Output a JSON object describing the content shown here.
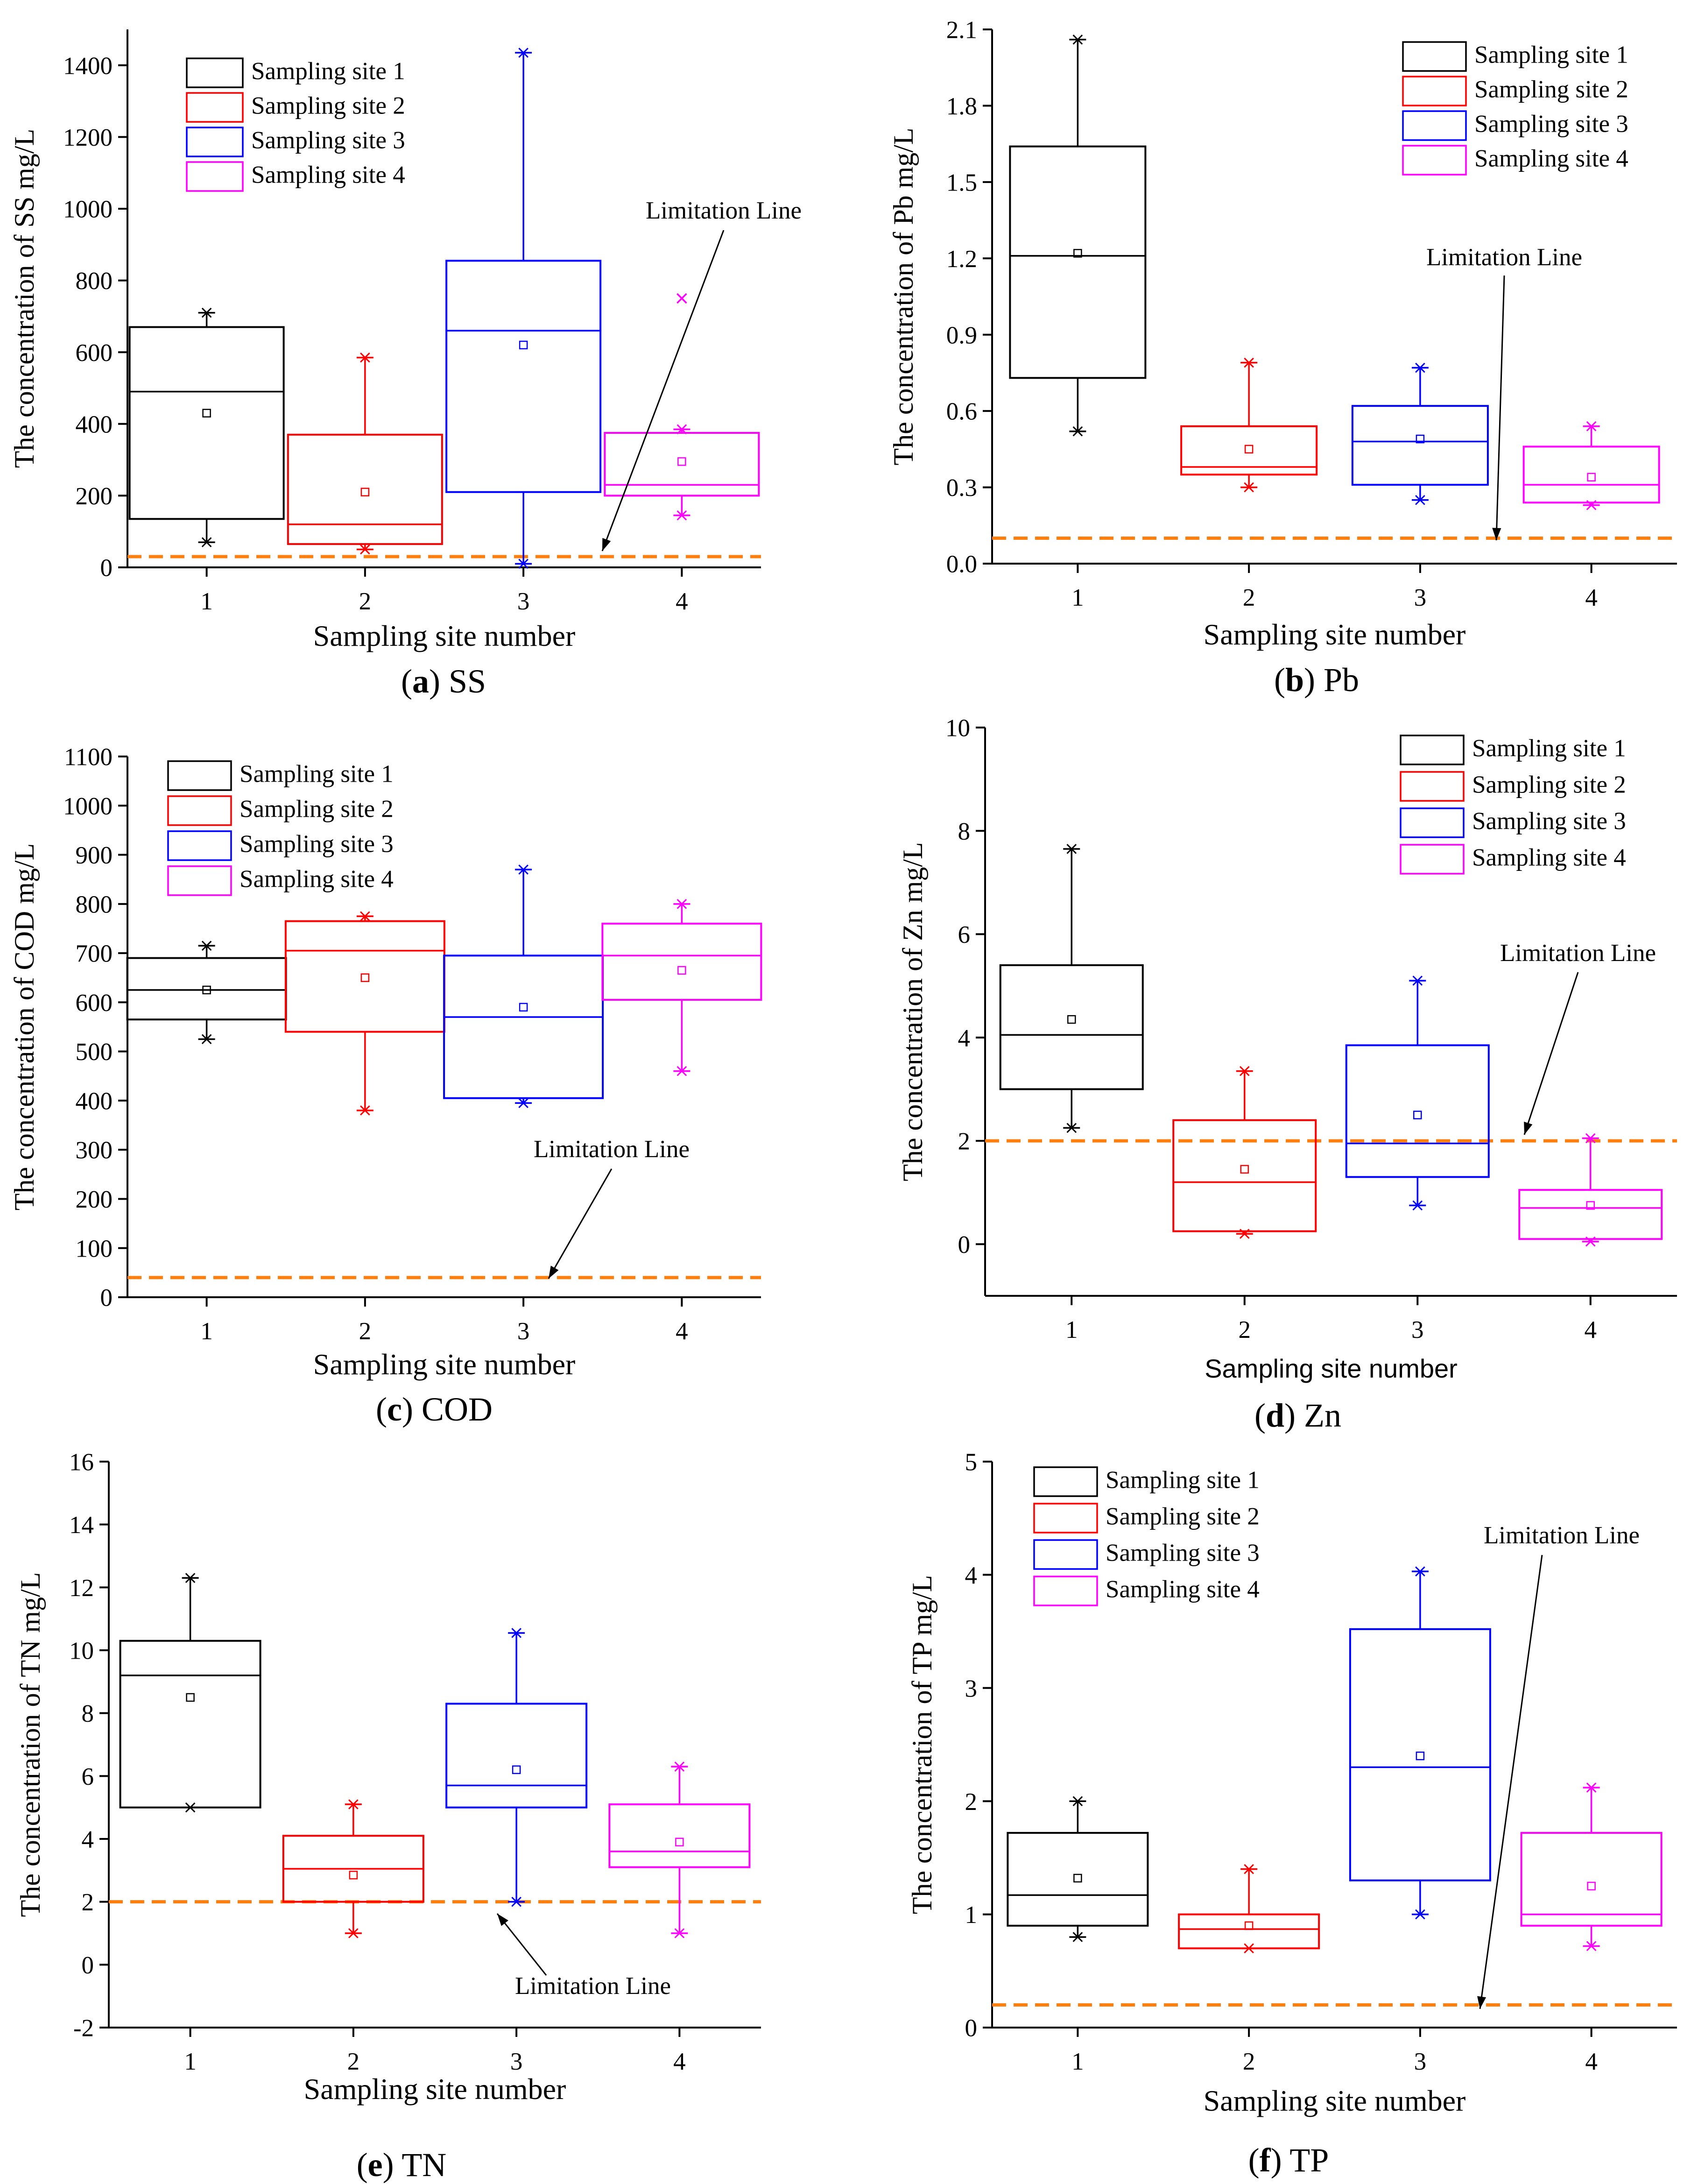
{
  "chart_data": [
    {
      "id": "a",
      "type": "box",
      "caption_letter": "a",
      "caption_text": " SS",
      "ylabel": "The concentration of SS mg/L",
      "xlabel": "Sampling site number",
      "ylim": [
        0,
        1500
      ],
      "yticks": [
        0,
        200,
        400,
        600,
        800,
        1000,
        1200,
        1400
      ],
      "categories": [
        "1",
        "2",
        "3",
        "4"
      ],
      "limit_value": 30,
      "limit_label": "Limitation Line",
      "legend": [
        "Sampling site 1",
        "Sampling site 2",
        "Sampling site 3",
        "Sampling site 4"
      ],
      "boxes": [
        {
          "q1": 135,
          "median": 490,
          "q3": 670,
          "mean": 430,
          "wlo": 70,
          "whi": 710,
          "outliers": []
        },
        {
          "q1": 65,
          "median": 120,
          "q3": 370,
          "mean": 210,
          "wlo": 50,
          "whi": 585,
          "outliers": []
        },
        {
          "q1": 210,
          "median": 660,
          "q3": 855,
          "mean": 620,
          "wlo": 10,
          "whi": 1435,
          "outliers": []
        },
        {
          "q1": 200,
          "median": 230,
          "q3": 375,
          "mean": 295,
          "wlo": 145,
          "whi": 385,
          "outliers": [
            750
          ]
        }
      ]
    },
    {
      "id": "b",
      "type": "box",
      "caption_letter": "b",
      "caption_text": " Pb",
      "ylabel": "The concentration of Pb  mg/L",
      "xlabel": "Sampling site number",
      "ylim": [
        0,
        2.1
      ],
      "yticks": [
        0.0,
        0.3,
        0.6,
        0.9,
        1.2,
        1.5,
        1.8,
        2.1
      ],
      "ytick_labels": [
        "0.0",
        "0.3",
        "0.6",
        "0.9",
        "1.2",
        "1.5",
        "1.8",
        "2.1"
      ],
      "categories": [
        "1",
        "2",
        "3",
        "4"
      ],
      "limit_value": 0.1,
      "limit_label": "Limitation Line",
      "legend": [
        "Sampling site 1",
        "Sampling site 2",
        "Sampling site 3",
        "Sampling site 4"
      ],
      "boxes": [
        {
          "q1": 0.73,
          "median": 1.21,
          "q3": 1.64,
          "mean": 1.22,
          "wlo": 0.52,
          "whi": 2.06,
          "outliers": []
        },
        {
          "q1": 0.35,
          "median": 0.38,
          "q3": 0.54,
          "mean": 0.45,
          "wlo": 0.3,
          "whi": 0.79,
          "outliers": []
        },
        {
          "q1": 0.31,
          "median": 0.48,
          "q3": 0.62,
          "mean": 0.49,
          "wlo": 0.25,
          "whi": 0.77,
          "outliers": []
        },
        {
          "q1": 0.24,
          "median": 0.31,
          "q3": 0.46,
          "mean": 0.34,
          "wlo": 0.23,
          "whi": 0.54,
          "outliers": []
        }
      ]
    },
    {
      "id": "c",
      "type": "box",
      "caption_letter": "c",
      "caption_text": " COD",
      "ylabel": "The concentration of COD  mg/L",
      "xlabel": "Sampling site number",
      "ylim": [
        0,
        1100
      ],
      "yticks": [
        0,
        100,
        200,
        300,
        400,
        500,
        600,
        700,
        800,
        900,
        1000,
        1100
      ],
      "categories": [
        "1",
        "2",
        "3",
        "4"
      ],
      "limit_value": 40,
      "limit_label": "Limitation Line",
      "legend": [
        "Sampling site 1",
        "Sampling site 2",
        "Sampling site 3",
        "Sampling site 4"
      ],
      "boxes": [
        {
          "q1": 565,
          "median": 625,
          "q3": 690,
          "mean": 625,
          "wlo": 525,
          "whi": 715,
          "outliers": []
        },
        {
          "q1": 540,
          "median": 705,
          "q3": 765,
          "mean": 650,
          "wlo": 380,
          "whi": 775,
          "outliers": []
        },
        {
          "q1": 405,
          "median": 570,
          "q3": 695,
          "mean": 590,
          "wlo": 395,
          "whi": 870,
          "outliers": []
        },
        {
          "q1": 605,
          "median": 695,
          "q3": 760,
          "mean": 665,
          "wlo": 460,
          "whi": 800,
          "outliers": []
        }
      ]
    },
    {
      "id": "d",
      "type": "box",
      "caption_letter": "d",
      "caption_text": " Zn",
      "ylabel": "The concentration of Zn  mg/L",
      "xlabel": "Sampling site number",
      "ylim": [
        -1,
        10
      ],
      "yticks": [
        0,
        2,
        4,
        6,
        8,
        10
      ],
      "categories": [
        "1",
        "2",
        "3",
        "4"
      ],
      "limit_value": 2,
      "limit_label": "Limitation Line",
      "legend": [
        "Sampling site 1",
        "Sampling site 2",
        "Sampling site 3",
        "Sampling site 4"
      ],
      "boxes": [
        {
          "q1": 3.0,
          "median": 4.05,
          "q3": 5.4,
          "mean": 4.35,
          "wlo": 2.25,
          "whi": 7.65,
          "outliers": []
        },
        {
          "q1": 0.25,
          "median": 1.2,
          "q3": 2.4,
          "mean": 1.45,
          "wlo": 0.2,
          "whi": 3.35,
          "outliers": []
        },
        {
          "q1": 1.3,
          "median": 1.95,
          "q3": 3.85,
          "mean": 2.5,
          "wlo": 0.75,
          "whi": 5.1,
          "outliers": []
        },
        {
          "q1": 0.1,
          "median": 0.7,
          "q3": 1.05,
          "mean": 0.75,
          "wlo": 0.05,
          "whi": 2.05,
          "outliers": []
        }
      ]
    },
    {
      "id": "e",
      "type": "box",
      "caption_letter": "e",
      "caption_text": " TN",
      "ylabel": "The concentration of TN  mg/L",
      "xlabel": "Sampling site number",
      "ylim": [
        -2,
        16
      ],
      "yticks": [
        -2,
        0,
        2,
        4,
        6,
        8,
        10,
        12,
        14,
        16
      ],
      "categories": [
        "1",
        "2",
        "3",
        "4"
      ],
      "limit_value": 2,
      "limit_label": "Limitation Line",
      "legend": null,
      "boxes": [
        {
          "q1": 5.0,
          "median": 9.2,
          "q3": 10.3,
          "mean": 8.5,
          "wlo": 5.0,
          "whi": 12.3,
          "outliers": []
        },
        {
          "q1": 2.0,
          "median": 3.05,
          "q3": 4.1,
          "mean": 2.85,
          "wlo": 1.0,
          "whi": 5.1,
          "outliers": []
        },
        {
          "q1": 5.0,
          "median": 5.7,
          "q3": 8.3,
          "mean": 6.2,
          "wlo": 2.0,
          "whi": 10.55,
          "outliers": []
        },
        {
          "q1": 3.1,
          "median": 3.6,
          "q3": 5.1,
          "mean": 3.9,
          "wlo": 1.0,
          "whi": 6.3,
          "outliers": []
        }
      ]
    },
    {
      "id": "f",
      "type": "box",
      "caption_letter": "f",
      "caption_text": " TP",
      "ylabel": "The concentration of TP  mg/L",
      "xlabel": "Sampling site number",
      "ylim": [
        0,
        5
      ],
      "yticks": [
        0,
        1,
        2,
        3,
        4,
        5
      ],
      "categories": [
        "1",
        "2",
        "3",
        "4"
      ],
      "limit_value": 0.2,
      "limit_label": "Limitation Line",
      "legend": [
        "Sampling site 1",
        "Sampling site 2",
        "Sampling site 3",
        "Sampling site 4"
      ],
      "boxes": [
        {
          "q1": 0.9,
          "median": 1.17,
          "q3": 1.72,
          "mean": 1.32,
          "wlo": 0.8,
          "whi": 2.0,
          "outliers": []
        },
        {
          "q1": 0.7,
          "median": 0.87,
          "q3": 1.0,
          "mean": 0.9,
          "wlo": 0.7,
          "whi": 1.4,
          "outliers": []
        },
        {
          "q1": 1.3,
          "median": 2.3,
          "q3": 3.52,
          "mean": 2.4,
          "wlo": 1.0,
          "whi": 4.03,
          "outliers": []
        },
        {
          "q1": 0.9,
          "median": 1.0,
          "q3": 1.72,
          "mean": 1.25,
          "wlo": 0.72,
          "whi": 2.12,
          "outliers": []
        }
      ]
    }
  ],
  "series_colors": [
    "#000000",
    "#ff0000",
    "#0000ff",
    "#ff00ff"
  ],
  "limit_color": "#ff7f0e"
}
